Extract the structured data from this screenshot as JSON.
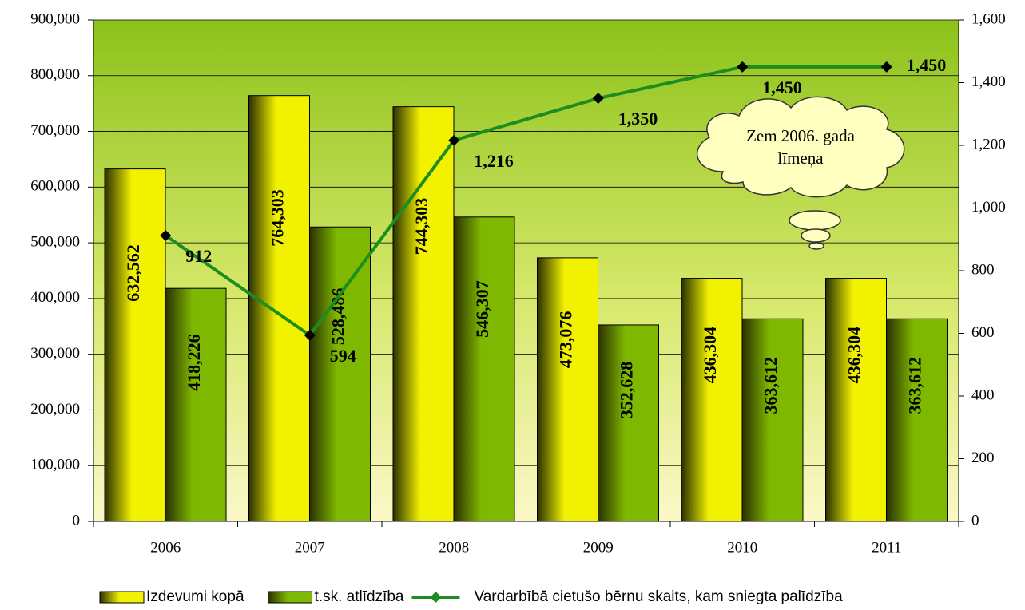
{
  "chart_data": {
    "type": "bar_line",
    "categories": [
      "2006",
      "2007",
      "2008",
      "2009",
      "2010",
      "2011"
    ],
    "series": [
      {
        "name": "Izdevumi kopā",
        "type": "bar",
        "color": "#f2f200",
        "values": [
          632562,
          764303,
          744303,
          473076,
          436304,
          436304
        ],
        "value_labels": [
          "632,562",
          "764,303",
          "744,303",
          "473,076",
          "436,304",
          "436,304"
        ]
      },
      {
        "name": "t.sk. atlīdzība",
        "type": "bar",
        "color": "#7fb800",
        "values": [
          418226,
          528486,
          546307,
          352628,
          363612,
          363612
        ],
        "value_labels": [
          "418,226",
          "528,486",
          "546,307",
          "352,628",
          "363,612",
          "363,612"
        ]
      },
      {
        "name": "Vardarbībā cietušo bērnu skaits, kam sniegta palīdzība",
        "type": "line",
        "axis": "y2",
        "color": "#1e8c1e",
        "values": [
          912,
          594,
          1216,
          1350,
          1450,
          1450
        ],
        "value_labels": [
          "912",
          "594",
          "1,216",
          "1,350",
          "1,450",
          "1,450"
        ]
      }
    ],
    "ylim": [
      0,
      900000
    ],
    "yticks": [
      0,
      {
        "value": 100000,
        "label": "100,000"
      },
      {
        "value": 200000,
        "label": "200,000"
      },
      {
        "value": 300000,
        "label": "300,000"
      },
      {
        "value": 400000,
        "label": "400,000"
      },
      {
        "value": 500000,
        "label": "500,000"
      },
      {
        "value": 600000,
        "label": "600,000"
      },
      {
        "value": 700000,
        "label": "700,000"
      },
      {
        "value": 800000,
        "label": "800,000"
      },
      {
        "value": 900000,
        "label": "900,000"
      }
    ],
    "y2lim": [
      0,
      1600
    ],
    "y2ticks": [
      0,
      200,
      400,
      600,
      800,
      {
        "value": 1000,
        "label": "1,000"
      },
      {
        "value": 1200,
        "label": "1,200"
      },
      {
        "value": 1400,
        "label": "1,400"
      },
      {
        "value": 1600,
        "label": "1,600"
      }
    ],
    "grid": true,
    "legend": "bottom",
    "annotation": [
      "Zem 2006. gada",
      "līmeņa"
    ]
  }
}
